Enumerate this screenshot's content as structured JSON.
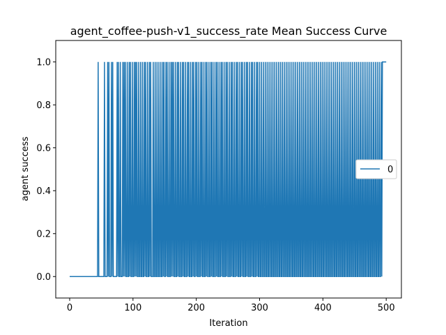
{
  "chart_data": {
    "type": "line",
    "title": "agent_coffee-push-v1_success_rate Mean Success Curve",
    "xlabel": "Iteration",
    "ylabel": "agent success",
    "xlim": [
      -22,
      524
    ],
    "ylim": [
      -0.1,
      1.1
    ],
    "xticks": [
      0,
      100,
      200,
      300,
      400,
      500
    ],
    "yticks": [
      0.0,
      0.2,
      0.4,
      0.6,
      0.8,
      1.0
    ],
    "xtick_labels": [
      "0",
      "100",
      "200",
      "300",
      "400",
      "500"
    ],
    "ytick_labels": [
      "0.0",
      "0.2",
      "0.4",
      "0.6",
      "0.8",
      "1.0"
    ],
    "grid": false,
    "legend_position": "center-right",
    "series": [
      {
        "name": "0",
        "color": "#1f77b4",
        "x_range": [
          0,
          500
        ],
        "zero_until": 44,
        "success_events": [
          45,
          55,
          60,
          62,
          66,
          68,
          75,
          77,
          80,
          84,
          86,
          88,
          91,
          94,
          96,
          99,
          102,
          104,
          106,
          109,
          112,
          115,
          118,
          120,
          123,
          126,
          128,
          132,
          135,
          138,
          141,
          144,
          147,
          149,
          152,
          154,
          157,
          160,
          162,
          164,
          167,
          170,
          172,
          175,
          178,
          180,
          183,
          186,
          188,
          191,
          194,
          196,
          199,
          201,
          204,
          207,
          209,
          212,
          215,
          217,
          220,
          223,
          225,
          228,
          231,
          233,
          236,
          239,
          241,
          244,
          247,
          249,
          252,
          255,
          257,
          260,
          263,
          265,
          268,
          271,
          273,
          276,
          279,
          281,
          284,
          287,
          289,
          292,
          295,
          297,
          300,
          303,
          306,
          309,
          312,
          315,
          318,
          321,
          324,
          327,
          330,
          333,
          336,
          339,
          342,
          345,
          348,
          351,
          354,
          357,
          360,
          363,
          366,
          369,
          372,
          375,
          378,
          381,
          384,
          387,
          390,
          393,
          396,
          399,
          402,
          405,
          408,
          411,
          414,
          417,
          420,
          423,
          426,
          429,
          432,
          435,
          438,
          441,
          444,
          447,
          450,
          453,
          456,
          459,
          462,
          465,
          468,
          471,
          474,
          477,
          480,
          483,
          486,
          489,
          492,
          494
        ],
        "final_success_from": 495
      }
    ]
  }
}
